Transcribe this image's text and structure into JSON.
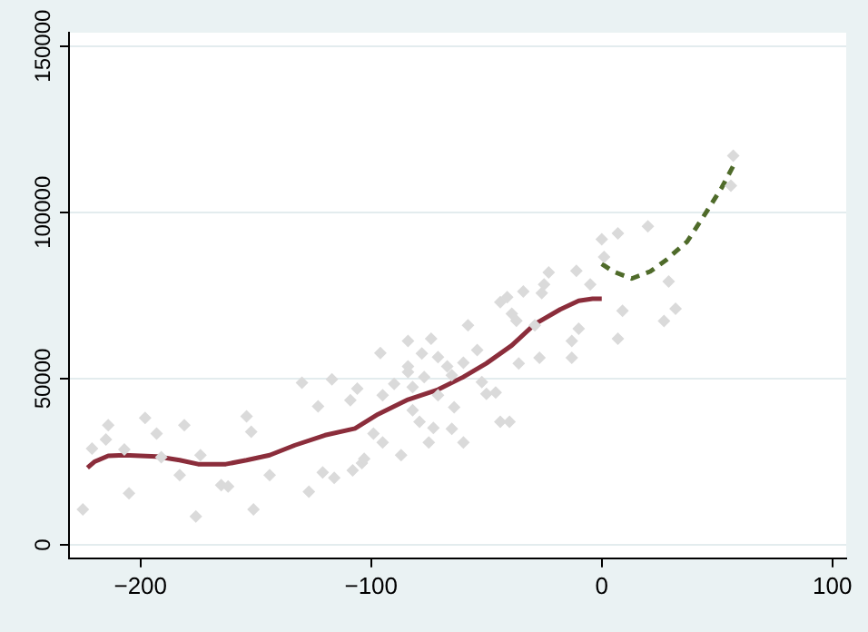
{
  "chart_data": {
    "type": "scatter",
    "xlim": [
      -231,
      106
    ],
    "ylim": [
      -4000,
      154000
    ],
    "xticks": [
      -200,
      -100,
      0,
      100
    ],
    "yticks": [
      0,
      50000,
      100000,
      150000
    ],
    "grid": "y",
    "series": [
      {
        "type": "scatter",
        "color": "#dadada",
        "marker": "diamond",
        "x": [
          -225,
          -221,
          -214,
          -215,
          -207,
          -205,
          -198,
          -193,
          -191,
          -183,
          -181,
          -176,
          -174,
          -165,
          -162,
          -154,
          -152,
          -151,
          -144,
          -130,
          -127,
          -123,
          -121,
          -117,
          -116,
          -109,
          -108,
          -106,
          -104,
          -103,
          -99,
          -96,
          -95,
          -95,
          -90,
          -87,
          -84,
          -84,
          -84,
          -82,
          -82,
          -79,
          -78,
          -77,
          -74,
          -75,
          -73,
          -71,
          -71,
          -67,
          -65,
          -64,
          -65,
          -60,
          -60,
          -58,
          -54,
          -52,
          -50,
          -46,
          -44,
          -44,
          -41,
          -40,
          -39,
          -37,
          -36,
          -34,
          -29,
          -27,
          -26,
          -25,
          -23,
          -13,
          -13,
          -11,
          -10,
          -5,
          0,
          1,
          7,
          7,
          9,
          20,
          27,
          29,
          32,
          57,
          56
        ],
        "values": [
          10700,
          29000,
          36000,
          31700,
          28700,
          15500,
          38200,
          33500,
          26400,
          21000,
          36000,
          8600,
          27000,
          18000,
          17600,
          38700,
          34000,
          10700,
          21000,
          48800,
          16000,
          41700,
          21800,
          49800,
          20200,
          43500,
          22400,
          47000,
          24600,
          25900,
          33500,
          57700,
          45000,
          30800,
          48400,
          27000,
          61300,
          53700,
          52000,
          47500,
          40500,
          37000,
          57600,
          50500,
          62000,
          30800,
          35200,
          56500,
          45000,
          53700,
          51000,
          41400,
          34900,
          54800,
          30800,
          66000,
          58600,
          49000,
          45400,
          45800,
          37000,
          73000,
          74500,
          37000,
          69500,
          67400,
          54600,
          76200,
          66000,
          56300,
          75700,
          78300,
          81900,
          61300,
          56300,
          82400,
          65000,
          78300,
          91900,
          86600,
          93700,
          62000,
          70400,
          95800,
          67300,
          79200,
          71000,
          117000,
          108000
        ]
      },
      {
        "type": "line",
        "color": "#8b2d3b",
        "marker": "none",
        "line_style": "solid",
        "x": [
          -223,
          -220,
          -214,
          -207,
          -193,
          -183,
          -175,
          -163,
          -154,
          -144,
          -133,
          -120,
          -107,
          -97,
          -84,
          -71,
          -60,
          -50,
          -39,
          -29,
          -18,
          -10,
          -4,
          0
        ],
        "values": [
          23200,
          25000,
          26800,
          27000,
          26600,
          25500,
          24300,
          24300,
          25500,
          27000,
          30000,
          33000,
          35000,
          39300,
          43700,
          46700,
          50500,
          54600,
          60000,
          66400,
          70800,
          73400,
          74000,
          74000
        ]
      },
      {
        "type": "line",
        "color": "#4f6b2a",
        "marker": "none",
        "line_style": "dashed",
        "x": [
          0,
          5,
          13,
          21,
          28,
          37,
          44,
          52,
          57
        ],
        "values": [
          84500,
          82200,
          80100,
          82200,
          85700,
          91200,
          98600,
          107400,
          113900
        ]
      }
    ]
  }
}
